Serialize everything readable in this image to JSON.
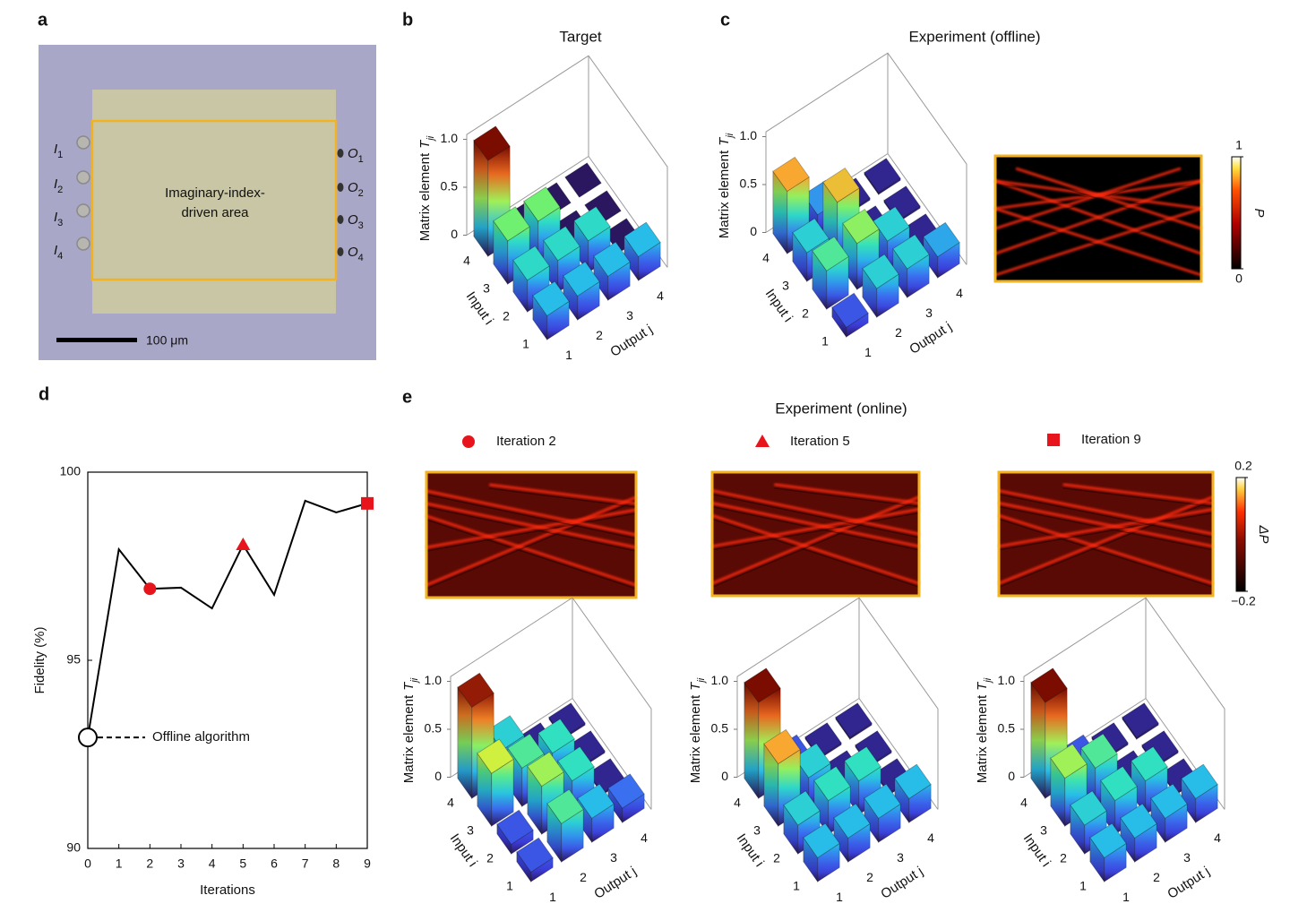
{
  "panel_labels": [
    "a",
    "b",
    "c",
    "d",
    "e"
  ],
  "micrograph": {
    "inputs": [
      [
        "I",
        "1"
      ],
      [
        "I",
        "2"
      ],
      [
        "I",
        "3"
      ],
      [
        "I",
        "4"
      ]
    ],
    "outputs": [
      [
        "O",
        "1"
      ],
      [
        "O",
        "2"
      ],
      [
        "O",
        "3"
      ],
      [
        "O",
        "4"
      ]
    ],
    "area_label": [
      "Imaginary-index-",
      "driven area"
    ],
    "scale_bar": "100 μm"
  },
  "panel_e_title": "Experiment (online)",
  "colorbars": [
    {
      "label": "P",
      "clim": [
        0,
        1
      ],
      "ticks": [
        0,
        1
      ]
    },
    {
      "label": "ΔP",
      "clim": [
        -0.2,
        0.2
      ],
      "ticks": [
        {
          "value": -0.2,
          "label": "−0.2"
        },
        0.2
      ]
    }
  ],
  "chart_data": [
    {
      "type": "line",
      "x": [
        0,
        1,
        2,
        3,
        4,
        5,
        6,
        7,
        8,
        9
      ],
      "values": [
        92.95,
        97.95,
        96.9,
        96.93,
        96.38,
        98.07,
        96.74,
        99.24,
        98.93,
        99.17
      ],
      "color": "#000000",
      "xlim": [
        0,
        9
      ],
      "ylim": [
        90,
        100
      ],
      "xticks": [
        0,
        1,
        2,
        3,
        4,
        5,
        6,
        7,
        8,
        9
      ],
      "yticks": [
        90,
        95,
        100
      ],
      "x_label": "Iterations",
      "y_label": "Fidelity (%)",
      "markers": [
        {
          "x": 0,
          "shape": "open-circle",
          "label": "Offline algorithm",
          "color": "#000000"
        },
        {
          "x": 2,
          "shape": "circle",
          "label": "Iteration 2",
          "color": "#e8141c"
        },
        {
          "x": 5,
          "shape": "triangle",
          "label": "Iteration 5",
          "color": "#e8141c"
        },
        {
          "x": 9,
          "shape": "square",
          "label": "Iteration 9",
          "color": "#e8141c"
        }
      ]
    },
    {
      "type": "bar3d",
      "title": "Target",
      "z_label": {
        "text": "Matrix element",
        "symbol": "T",
        "sub": "ji"
      },
      "x_label": "Output j",
      "y_label": "Input i",
      "x_categories": [
        "1",
        "2",
        "3",
        "4"
      ],
      "y_categories": [
        "1",
        "2",
        "3",
        "4"
      ],
      "values": [
        [
          0.25,
          0.25,
          0.25,
          0.25
        ],
        [
          0.33,
          0.33,
          0.33,
          0
        ],
        [
          0.45,
          0.45,
          0,
          0
        ],
        [
          1.0,
          0,
          0,
          0
        ]
      ],
      "zlim": [
        0,
        1.05
      ],
      "zticks": [
        0,
        0.5,
        {
          "value": 1,
          "label": "1.0"
        }
      ],
      "colormap": "jet"
    },
    {
      "type": "bar3d",
      "title": "Experiment (offline)",
      "z_label": {
        "text": "Matrix element",
        "symbol": "T",
        "sub": "ji"
      },
      "x_label": "Output j",
      "y_label": "Input i",
      "x_categories": [
        "1",
        "2",
        "3",
        "4"
      ],
      "y_categories": [
        "1",
        "2",
        "3",
        "4"
      ],
      "values": [
        [
          0.1,
          0.3,
          0.3,
          0.22
        ],
        [
          0.4,
          0.48,
          0.3,
          0.02
        ],
        [
          0.3,
          0.62,
          0.02,
          0.02
        ],
        [
          0.65,
          0.2,
          0.02,
          0.02
        ]
      ],
      "zlim": [
        0,
        1.05
      ],
      "zticks": [
        0,
        0.5,
        {
          "value": 1,
          "label": "1.0"
        }
      ],
      "colormap": "jet"
    },
    {
      "type": "bar3d",
      "z_label": {
        "text": "Matrix element",
        "symbol": "T",
        "sub": "ji"
      },
      "x_label": "Output j",
      "y_label": "Input i",
      "x_categories": [
        "1",
        "2",
        "3",
        "4"
      ],
      "y_categories": [
        "1",
        "2",
        "3",
        "4"
      ],
      "values": [
        [
          0.1,
          0.4,
          0.25,
          0.15
        ],
        [
          0.1,
          0.5,
          0.35,
          0.02
        ],
        [
          0.55,
          0.4,
          0.35,
          0.02
        ],
        [
          0.95,
          0.3,
          0.02,
          0.02
        ]
      ],
      "zlim": [
        0,
        1.05
      ],
      "zticks": [
        0,
        0.5,
        {
          "value": 1,
          "label": "1.0"
        }
      ],
      "colormap": "jet"
    },
    {
      "type": "bar3d",
      "z_label": {
        "text": "Matrix element",
        "symbol": "T",
        "sub": "ji"
      },
      "x_label": "Output j",
      "y_label": "Input i",
      "x_categories": [
        "1",
        "2",
        "3",
        "4"
      ],
      "y_categories": [
        "1",
        "2",
        "3",
        "4"
      ],
      "values": [
        [
          0.25,
          0.25,
          0.25,
          0.25
        ],
        [
          0.3,
          0.35,
          0.35,
          0.02
        ],
        [
          0.65,
          0.3,
          0.02,
          0.02
        ],
        [
          1.0,
          0.1,
          0.02,
          0.02
        ]
      ],
      "zlim": [
        0,
        1.05
      ],
      "zticks": [
        0,
        0.5,
        {
          "value": 1,
          "label": "1.0"
        }
      ],
      "colormap": "jet"
    },
    {
      "type": "bar3d",
      "z_label": {
        "text": "Matrix element",
        "symbol": "T",
        "sub": "ji"
      },
      "x_label": "Output j",
      "y_label": "Input i",
      "x_categories": [
        "1",
        "2",
        "3",
        "4"
      ],
      "y_categories": [
        "1",
        "2",
        "3",
        "4"
      ],
      "values": [
        [
          0.25,
          0.25,
          0.25,
          0.25
        ],
        [
          0.3,
          0.35,
          0.35,
          0.02
        ],
        [
          0.5,
          0.4,
          0.02,
          0.02
        ],
        [
          1.0,
          0.1,
          0.02,
          0.02
        ]
      ],
      "zlim": [
        0,
        1.05
      ],
      "zticks": [
        0,
        0.5,
        {
          "value": 1,
          "label": "1.0"
        }
      ],
      "colormap": "jet"
    }
  ]
}
